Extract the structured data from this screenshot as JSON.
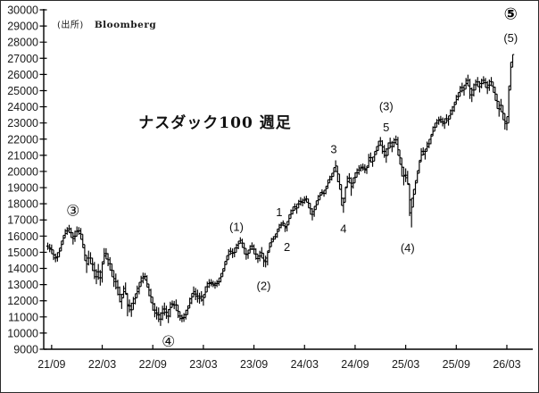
{
  "window": {
    "background": "#ffffff",
    "border_color": "#2b2b2b"
  },
  "chart_data": {
    "type": "ohlc-bar",
    "title": "ナスダック100 週足",
    "source_prefix": "(出所)",
    "source_name": "Bloomberg",
    "legend_position": "none",
    "grid": false,
    "bar_color": "#000000",
    "axis_color": "#000000",
    "text_color": "#1a1a1a",
    "y_axis": {
      "min": 9000,
      "max": 30000,
      "step": 1000
    },
    "x_ticks": [
      "21/09",
      "22/03",
      "22/09",
      "23/03",
      "23/09",
      "24/03",
      "24/09",
      "25/03",
      "25/09",
      "26/03"
    ],
    "x_tick_weeks": [
      2,
      28,
      54,
      80,
      106,
      132,
      158,
      184,
      210,
      236
    ],
    "bars_low_high": [
      [
        15150,
        15600
      ],
      [
        15000,
        15520
      ],
      [
        14900,
        15480
      ],
      [
        14520,
        15150
      ],
      [
        14380,
        14920
      ],
      [
        14420,
        15000
      ],
      [
        14700,
        15260
      ],
      [
        15080,
        15700
      ],
      [
        15480,
        16050
      ],
      [
        15880,
        16440
      ],
      [
        16080,
        16560
      ],
      [
        16200,
        16700
      ],
      [
        15900,
        16520
      ],
      [
        15480,
        16220
      ],
      [
        15640,
        16340
      ],
      [
        15980,
        16600
      ],
      [
        16080,
        16560
      ],
      [
        15800,
        16500
      ],
      [
        15280,
        16120
      ],
      [
        14480,
        15480
      ],
      [
        13720,
        14820
      ],
      [
        14180,
        15100
      ],
      [
        14280,
        15000
      ],
      [
        13840,
        14660
      ],
      [
        13340,
        14400
      ],
      [
        13030,
        13950
      ],
      [
        13300,
        14280
      ],
      [
        12940,
        13900
      ],
      [
        13120,
        14420
      ],
      [
        14280,
        15260
      ],
      [
        14580,
        15250
      ],
      [
        14140,
        14940
      ],
      [
        13880,
        14700
      ],
      [
        13480,
        14300
      ],
      [
        12850,
        13880
      ],
      [
        12700,
        13680
      ],
      [
        12340,
        13300
      ],
      [
        11900,
        12880
      ],
      [
        11490,
        12400
      ],
      [
        12180,
        12940
      ],
      [
        12400,
        13130
      ],
      [
        11040,
        12460
      ],
      [
        11280,
        12080
      ],
      [
        11000,
        11880
      ],
      [
        11440,
        12240
      ],
      [
        11780,
        12440
      ],
      [
        12180,
        12940
      ],
      [
        12400,
        13140
      ],
      [
        12880,
        13540
      ],
      [
        13080,
        13740
      ],
      [
        13280,
        13720
      ],
      [
        12840,
        13580
      ],
      [
        12280,
        13040
      ],
      [
        11880,
        12740
      ],
      [
        11380,
        12240
      ],
      [
        10980,
        11860
      ],
      [
        10840,
        11640
      ],
      [
        10680,
        11580
      ],
      [
        10440,
        11290
      ],
      [
        10790,
        11690
      ],
      [
        11080,
        11890
      ],
      [
        10880,
        11690
      ],
      [
        10620,
        11480
      ],
      [
        10980,
        11940
      ],
      [
        11580,
        12020
      ],
      [
        11480,
        11990
      ],
      [
        11390,
        12080
      ],
      [
        10930,
        11740
      ],
      [
        10770,
        11340
      ],
      [
        10670,
        11140
      ],
      [
        10690,
        11240
      ],
      [
        10840,
        11440
      ],
      [
        11140,
        11690
      ],
      [
        11540,
        12190
      ],
      [
        11790,
        12460
      ],
      [
        12240,
        12880
      ],
      [
        12040,
        12790
      ],
      [
        11890,
        12690
      ],
      [
        11820,
        12490
      ],
      [
        11940,
        12590
      ],
      [
        11690,
        12390
      ],
      [
        12190,
        12890
      ],
      [
        12540,
        13190
      ],
      [
        12790,
        13340
      ],
      [
        12890,
        13340
      ],
      [
        12840,
        13240
      ],
      [
        12740,
        13190
      ],
      [
        12840,
        13290
      ],
      [
        12930,
        13410
      ],
      [
        13140,
        13690
      ],
      [
        13490,
        13990
      ],
      [
        13840,
        14440
      ],
      [
        14240,
        14790
      ],
      [
        14540,
        15190
      ],
      [
        14840,
        15290
      ],
      [
        14640,
        15240
      ],
      [
        14690,
        15270
      ],
      [
        14990,
        15540
      ],
      [
        15190,
        15690
      ],
      [
        15540,
        15930
      ],
      [
        15290,
        15840
      ],
      [
        14890,
        15590
      ],
      [
        14540,
        15240
      ],
      [
        14590,
        15140
      ],
      [
        14940,
        15440
      ],
      [
        15140,
        15610
      ],
      [
        14890,
        15490
      ],
      [
        14540,
        15240
      ],
      [
        14340,
        14890
      ],
      [
        14440,
        15090
      ],
      [
        14640,
        15320
      ],
      [
        14090,
        14940
      ],
      [
        14060,
        14790
      ],
      [
        14190,
        15090
      ],
      [
        14990,
        15590
      ],
      [
        15340,
        15890
      ],
      [
        15640,
        15990
      ],
      [
        15790,
        16140
      ],
      [
        15890,
        16440
      ],
      [
        16290,
        16760
      ],
      [
        16490,
        16870
      ],
      [
        16640,
        16970
      ],
      [
        16250,
        16790
      ],
      [
        16290,
        16910
      ],
      [
        16690,
        17330
      ],
      [
        17090,
        17650
      ],
      [
        17340,
        17810
      ],
      [
        17590,
        18030
      ],
      [
        17390,
        17990
      ],
      [
        17740,
        18240
      ],
      [
        17890,
        18410
      ],
      [
        17840,
        18330
      ],
      [
        17990,
        18460
      ],
      [
        18090,
        18500
      ],
      [
        17740,
        18320
      ],
      [
        17340,
        18040
      ],
      [
        16970,
        17730
      ],
      [
        17190,
        17840
      ],
      [
        17640,
        18190
      ],
      [
        17940,
        18540
      ],
      [
        18240,
        18700
      ],
      [
        18540,
        18890
      ],
      [
        18440,
        18840
      ],
      [
        18590,
        19090
      ],
      [
        18940,
        19490
      ],
      [
        19290,
        19740
      ],
      [
        19440,
        19890
      ],
      [
        19690,
        20240
      ],
      [
        19990,
        20690
      ],
      [
        19340,
        20340
      ],
      [
        18890,
        19840
      ],
      [
        17890,
        19190
      ],
      [
        17440,
        18340
      ],
      [
        18090,
        19040
      ],
      [
        18990,
        19740
      ],
      [
        19290,
        19890
      ],
      [
        18490,
        19640
      ],
      [
        18940,
        19610
      ],
      [
        19290,
        19940
      ],
      [
        19640,
        20190
      ],
      [
        19790,
        20390
      ],
      [
        19990,
        20440
      ],
      [
        20040,
        20490
      ],
      [
        19890,
        20440
      ],
      [
        19840,
        20340
      ],
      [
        20240,
        21090
      ],
      [
        20540,
        21170
      ],
      [
        20290,
        20890
      ],
      [
        20640,
        21240
      ],
      [
        21040,
        21550
      ],
      [
        21290,
        21880
      ],
      [
        21610,
        22130
      ],
      [
        21090,
        21930
      ],
      [
        20840,
        21640
      ],
      [
        20540,
        21440
      ],
      [
        20990,
        21790
      ],
      [
        21440,
        22090
      ],
      [
        21190,
        21890
      ],
      [
        21490,
        22070
      ],
      [
        21690,
        22220
      ],
      [
        20990,
        22140
      ],
      [
        20440,
        21340
      ],
      [
        19690,
        20840
      ],
      [
        19140,
        20290
      ],
      [
        19340,
        20190
      ],
      [
        19190,
        20040
      ],
      [
        17240,
        19240
      ],
      [
        16540,
        18340
      ],
      [
        17790,
        18890
      ],
      [
        18590,
        19440
      ],
      [
        19290,
        20050
      ],
      [
        19890,
        20690
      ],
      [
        20590,
        21440
      ],
      [
        20990,
        21490
      ],
      [
        20740,
        21390
      ],
      [
        21240,
        21850
      ],
      [
        21440,
        21990
      ],
      [
        21690,
        22290
      ],
      [
        22190,
        22790
      ],
      [
        22490,
        22990
      ],
      [
        22740,
        23240
      ],
      [
        22890,
        23390
      ],
      [
        22990,
        23440
      ],
      [
        22790,
        23340
      ],
      [
        22640,
        23290
      ],
      [
        22990,
        23540
      ],
      [
        22840,
        23440
      ],
      [
        23240,
        23840
      ],
      [
        23490,
        24040
      ],
      [
        23690,
        24290
      ],
      [
        24140,
        24740
      ],
      [
        24390,
        24890
      ],
      [
        24640,
        25290
      ],
      [
        24890,
        25490
      ],
      [
        24690,
        25340
      ],
      [
        25090,
        25790
      ],
      [
        25290,
        25990
      ],
      [
        24490,
        25740
      ],
      [
        24290,
        25190
      ],
      [
        24640,
        25440
      ],
      [
        25040,
        25690
      ],
      [
        25240,
        25840
      ],
      [
        24890,
        25590
      ],
      [
        25140,
        25740
      ],
      [
        25390,
        25890
      ],
      [
        25190,
        25790
      ],
      [
        24790,
        25590
      ],
      [
        24990,
        25690
      ],
      [
        25290,
        25840
      ],
      [
        24890,
        25540
      ],
      [
        24390,
        25240
      ],
      [
        23890,
        24790
      ],
      [
        23390,
        24340
      ],
      [
        23690,
        24490
      ],
      [
        23190,
        24090
      ],
      [
        22590,
        23590
      ],
      [
        22540,
        23390
      ],
      [
        22990,
        25290
      ],
      [
        25040,
        26760
      ],
      [
        26450,
        27230
      ]
    ],
    "annotations": [
      {
        "text": "③",
        "week": 13,
        "value": 17550,
        "style": "circled"
      },
      {
        "text": "④",
        "week": 62,
        "value": 9450,
        "style": "circled"
      },
      {
        "text": "(1)",
        "week": 97,
        "value": 16600,
        "style": "plain"
      },
      {
        "text": "(2)",
        "week": 111,
        "value": 12950,
        "style": "plain"
      },
      {
        "text": "1",
        "week": 119,
        "value": 17500,
        "style": "plain"
      },
      {
        "text": "2",
        "week": 123,
        "value": 15350,
        "style": "plain"
      },
      {
        "text": "3",
        "week": 147,
        "value": 21400,
        "style": "plain"
      },
      {
        "text": "4",
        "week": 152,
        "value": 16500,
        "style": "plain"
      },
      {
        "text": "5",
        "week": 174,
        "value": 22750,
        "style": "plain"
      },
      {
        "text": "(3)",
        "week": 174,
        "value": 24050,
        "style": "plain"
      },
      {
        "text": "(4)",
        "week": 185,
        "value": 15300,
        "style": "plain"
      },
      {
        "text": "(5)",
        "week": 238,
        "value": 28300,
        "style": "plain"
      },
      {
        "text": "⑤",
        "week": 238,
        "value": 29700,
        "style": "circled-bold"
      }
    ]
  }
}
